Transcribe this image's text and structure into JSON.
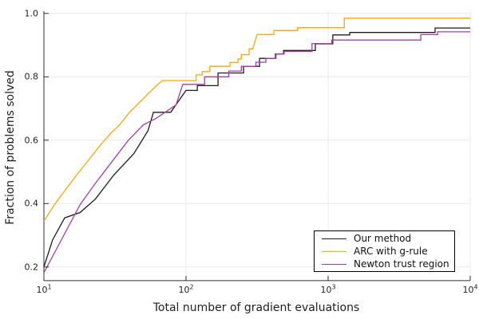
{
  "chart_data": {
    "type": "line",
    "title": "",
    "xlabel": "Total number of gradient evaluations",
    "ylabel": "Fraction of problems solved",
    "x_scale": "log10",
    "xlim": [
      10,
      10000
    ],
    "ylim": [
      0.157,
      1.0
    ],
    "grid": true,
    "legend_position": "bottom-right",
    "x_ticks": [
      {
        "base": "10",
        "exp": "1",
        "value": 10
      },
      {
        "base": "10",
        "exp": "2",
        "value": 100
      },
      {
        "base": "10",
        "exp": "3",
        "value": 1000
      },
      {
        "base": "10",
        "exp": "4",
        "value": 10000
      }
    ],
    "y_ticks": [
      {
        "label": "0.2",
        "value": 0.2
      },
      {
        "label": "0.4",
        "value": 0.4
      },
      {
        "label": "0.6",
        "value": 0.6
      },
      {
        "label": "0.8",
        "value": 0.8
      },
      {
        "label": "1.0",
        "value": 1.0
      }
    ],
    "series": [
      {
        "name": "Our method",
        "color": "#1c1c1c",
        "points": [
          [
            10,
            0.2
          ],
          [
            11.5,
            0.285
          ],
          [
            14,
            0.355
          ],
          [
            18,
            0.372
          ],
          [
            23,
            0.414
          ],
          [
            31,
            0.49
          ],
          [
            43,
            0.558
          ],
          [
            54,
            0.63
          ],
          [
            59,
            0.688
          ],
          [
            78,
            0.688
          ],
          [
            100,
            0.757
          ],
          [
            120,
            0.757
          ],
          [
            120,
            0.772
          ],
          [
            168,
            0.772
          ],
          [
            168,
            0.812
          ],
          [
            254,
            0.812
          ],
          [
            254,
            0.833
          ],
          [
            329,
            0.833
          ],
          [
            329,
            0.858
          ],
          [
            426,
            0.858
          ],
          [
            426,
            0.872
          ],
          [
            485,
            0.872
          ],
          [
            485,
            0.883
          ],
          [
            813,
            0.883
          ],
          [
            813,
            0.904
          ],
          [
            1080,
            0.904
          ],
          [
            1080,
            0.932
          ],
          [
            1420,
            0.932
          ],
          [
            1420,
            0.94
          ],
          [
            5660,
            0.94
          ],
          [
            5660,
            0.954
          ],
          [
            10000,
            0.954
          ]
        ]
      },
      {
        "name": "ARC with g-rule",
        "color": "#FFA500",
        "points": [
          [
            10,
            0.345
          ],
          [
            12,
            0.4
          ],
          [
            14,
            0.44
          ],
          [
            17,
            0.49
          ],
          [
            20,
            0.53
          ],
          [
            25,
            0.585
          ],
          [
            30,
            0.625
          ],
          [
            34,
            0.648
          ],
          [
            40,
            0.688
          ],
          [
            49,
            0.727
          ],
          [
            55,
            0.75
          ],
          [
            62,
            0.772
          ],
          [
            68,
            0.788
          ],
          [
            118,
            0.788
          ],
          [
            118,
            0.806
          ],
          [
            130,
            0.806
          ],
          [
            130,
            0.816
          ],
          [
            147,
            0.816
          ],
          [
            147,
            0.833
          ],
          [
            204,
            0.833
          ],
          [
            204,
            0.845
          ],
          [
            232,
            0.845
          ],
          [
            232,
            0.856
          ],
          [
            245,
            0.856
          ],
          [
            245,
            0.87
          ],
          [
            278,
            0.87
          ],
          [
            278,
            0.888
          ],
          [
            295,
            0.888
          ],
          [
            316,
            0.933
          ],
          [
            415,
            0.933
          ],
          [
            415,
            0.946
          ],
          [
            610,
            0.946
          ],
          [
            610,
            0.955
          ],
          [
            1300,
            0.955
          ],
          [
            1300,
            0.985
          ],
          [
            10000,
            0.985
          ]
        ]
      },
      {
        "name": "Newton trust region",
        "color": "#A83CAA",
        "points": [
          [
            10,
            0.182
          ],
          [
            18,
            0.397
          ],
          [
            23,
            0.464
          ],
          [
            30,
            0.531
          ],
          [
            39,
            0.598
          ],
          [
            50,
            0.648
          ],
          [
            61,
            0.668
          ],
          [
            85,
            0.711
          ],
          [
            95,
            0.776
          ],
          [
            135,
            0.776
          ],
          [
            135,
            0.8
          ],
          [
            200,
            0.8
          ],
          [
            200,
            0.818
          ],
          [
            245,
            0.818
          ],
          [
            245,
            0.833
          ],
          [
            310,
            0.833
          ],
          [
            310,
            0.846
          ],
          [
            365,
            0.846
          ],
          [
            365,
            0.858
          ],
          [
            430,
            0.858
          ],
          [
            430,
            0.872
          ],
          [
            490,
            0.872
          ],
          [
            490,
            0.88
          ],
          [
            770,
            0.88
          ],
          [
            770,
            0.905
          ],
          [
            1060,
            0.905
          ],
          [
            1060,
            0.916
          ],
          [
            4490,
            0.916
          ],
          [
            4490,
            0.933
          ],
          [
            5890,
            0.933
          ],
          [
            5890,
            0.942
          ],
          [
            10000,
            0.942
          ]
        ]
      }
    ],
    "colors": {
      "axis": "#2f2f2f",
      "grid": "#e9e9e9",
      "background": "#ffffff"
    }
  }
}
